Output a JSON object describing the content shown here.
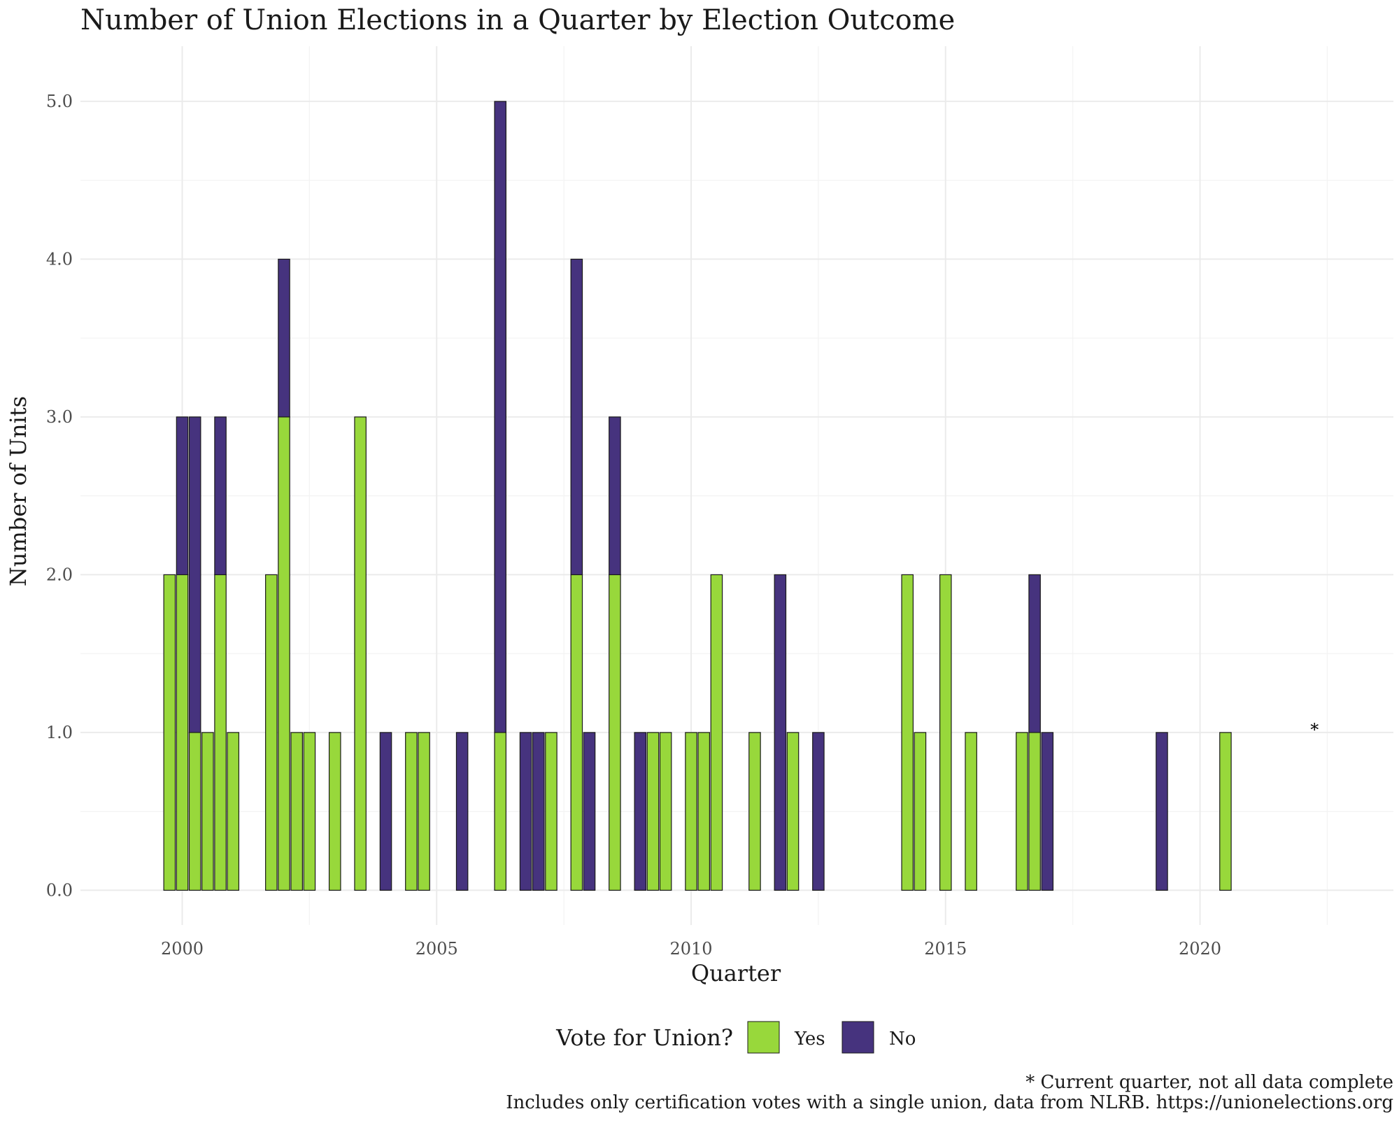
{
  "chart_data": {
    "type": "bar",
    "stacked": true,
    "title": "Number of Union Elections in a Quarter by Election Outcome",
    "xlabel": "Quarter",
    "ylabel": "Number of Units",
    "xlim": [
      1998.0,
      2023.8
    ],
    "ylim": [
      -0.22,
      5.35
    ],
    "x_ticks": [
      2000,
      2005,
      2010,
      2015,
      2020
    ],
    "x_tick_labels": [
      "2000",
      "2005",
      "2010",
      "2015",
      "2020"
    ],
    "y_ticks": [
      0,
      1,
      2,
      3,
      4,
      5
    ],
    "y_tick_labels": [
      "0.0",
      "1.0",
      "2.0",
      "3.0",
      "4.0",
      "5.0"
    ],
    "grid": true,
    "legend": {
      "title": "Vote for Union?",
      "position": "bottom",
      "entries": [
        {
          "name": "Yes",
          "color": "#98d83b"
        },
        {
          "name": "No",
          "color": "#46337e"
        }
      ]
    },
    "colors": {
      "yes": "#98d83b",
      "no": "#46337e",
      "outline": "#1a1a1a",
      "grid_major": "#ebebeb",
      "grid_minor": "#f3f3f3"
    },
    "quarters": [
      "1999Q4",
      "2000Q1",
      "2000Q2",
      "2000Q3",
      "2000Q4",
      "2001Q1",
      "2001Q4",
      "2002Q1",
      "2002Q2",
      "2002Q3",
      "2003Q1",
      "2003Q3",
      "2004Q1",
      "2004Q3",
      "2004Q4",
      "2005Q3",
      "2006Q2",
      "2006Q4",
      "2007Q1",
      "2007Q2",
      "2007Q4",
      "2008Q1",
      "2008Q3",
      "2009Q1",
      "2009Q2",
      "2009Q3",
      "2010Q1",
      "2010Q2",
      "2010Q3",
      "2011Q2",
      "2011Q4",
      "2012Q1",
      "2012Q3",
      "2014Q2",
      "2014Q3",
      "2015Q1",
      "2015Q3",
      "2016Q3",
      "2016Q4",
      "2017Q1",
      "2019Q2",
      "2020Q3"
    ],
    "x": [
      1999.75,
      2000.0,
      2000.25,
      2000.5,
      2000.75,
      2001.0,
      2001.75,
      2002.0,
      2002.25,
      2002.5,
      2003.0,
      2003.5,
      2004.0,
      2004.5,
      2004.75,
      2005.5,
      2006.25,
      2006.75,
      2007.0,
      2007.25,
      2007.75,
      2008.0,
      2008.5,
      2009.0,
      2009.25,
      2009.5,
      2010.0,
      2010.25,
      2010.5,
      2011.25,
      2011.75,
      2012.0,
      2012.5,
      2014.25,
      2014.5,
      2015.0,
      2015.5,
      2016.5,
      2016.75,
      2017.0,
      2019.25,
      2020.5
    ],
    "series": [
      {
        "name": "Yes",
        "values": [
          2,
          2,
          1,
          1,
          2,
          1,
          2,
          3,
          1,
          1,
          1,
          3,
          0,
          1,
          1,
          0,
          1,
          0,
          0,
          1,
          2,
          0,
          2,
          0,
          1,
          1,
          1,
          1,
          2,
          1,
          0,
          1,
          0,
          2,
          1,
          2,
          1,
          1,
          1,
          0,
          0,
          1
        ]
      },
      {
        "name": "No",
        "values": [
          0,
          1,
          2,
          0,
          1,
          0,
          0,
          1,
          0,
          0,
          0,
          0,
          1,
          0,
          0,
          1,
          4,
          1,
          1,
          0,
          2,
          1,
          1,
          1,
          0,
          0,
          0,
          0,
          0,
          0,
          2,
          0,
          1,
          0,
          0,
          0,
          0,
          0,
          1,
          1,
          1,
          0
        ]
      }
    ],
    "annotations": [
      {
        "text": "*",
        "x": 2022.25,
        "y": 1.0
      }
    ],
    "caption_lines": [
      "* Current quarter, not all data complete",
      "Includes only certification votes with a single union, data from NLRB. https://unionelections.org"
    ]
  }
}
